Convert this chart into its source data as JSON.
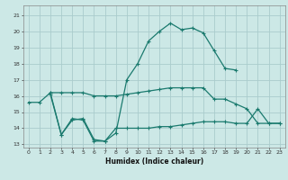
{
  "xlabel": "Humidex (Indice chaleur)",
  "bg_color": "#cce8e6",
  "grid_color": "#aacccc",
  "line_color": "#1a7a6e",
  "xlim": [
    -0.5,
    23.5
  ],
  "ylim": [
    12.8,
    21.6
  ],
  "xticks": [
    0,
    1,
    2,
    3,
    4,
    5,
    6,
    7,
    8,
    9,
    10,
    11,
    12,
    13,
    14,
    15,
    16,
    17,
    18,
    19,
    20,
    21,
    22,
    23
  ],
  "yticks": [
    13,
    14,
    15,
    16,
    17,
    18,
    19,
    20,
    21
  ],
  "line1_x": [
    0,
    1,
    2,
    3,
    4,
    5,
    6,
    7,
    8,
    9,
    10,
    11,
    12,
    13,
    14,
    15,
    16,
    17,
    18,
    19,
    20,
    21,
    22,
    23
  ],
  "line1_y": [
    15.6,
    15.6,
    16.2,
    16.2,
    16.2,
    16.2,
    16.0,
    16.0,
    16.0,
    16.1,
    16.2,
    16.3,
    16.4,
    16.5,
    16.5,
    16.5,
    16.5,
    15.8,
    15.8,
    15.5,
    15.2,
    14.3,
    14.3,
    14.3
  ],
  "line2_x": [
    2,
    3,
    4,
    5,
    6,
    7,
    8,
    9,
    10,
    11,
    12,
    13,
    14,
    15,
    16,
    17,
    18,
    19
  ],
  "line2_y": [
    16.2,
    13.6,
    14.5,
    14.6,
    13.3,
    13.2,
    13.7,
    17.0,
    18.0,
    19.4,
    20.0,
    20.5,
    20.1,
    20.2,
    19.9,
    18.8,
    17.7,
    17.6
  ],
  "line3_x": [
    2,
    3,
    4,
    5,
    6,
    7,
    8,
    9,
    10,
    11,
    12,
    13,
    14,
    15,
    16,
    17,
    18,
    19,
    20,
    21,
    22,
    23
  ],
  "line3_y": [
    16.1,
    13.6,
    14.6,
    14.5,
    13.2,
    13.2,
    14.0,
    14.0,
    14.0,
    14.0,
    14.1,
    14.1,
    14.2,
    14.3,
    14.4,
    14.4,
    14.4,
    14.3,
    14.3,
    15.2,
    14.3,
    14.3
  ]
}
